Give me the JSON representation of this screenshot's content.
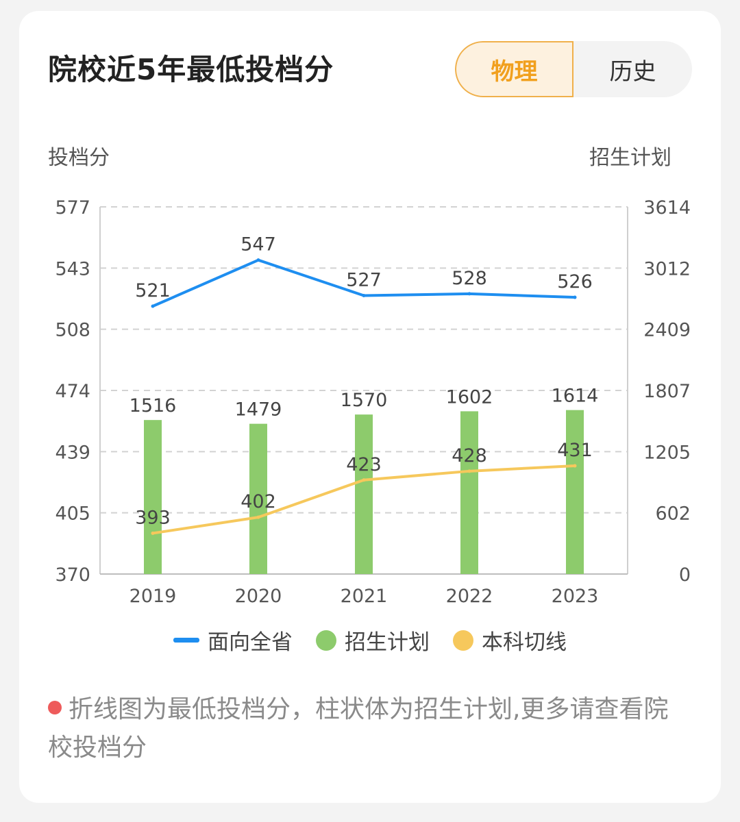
{
  "header": {
    "title": "院校近5年最低投档分",
    "tabs": [
      {
        "label": "物理",
        "active": true
      },
      {
        "label": "历史",
        "active": false
      }
    ]
  },
  "chart_data": {
    "type": "bar+line",
    "categories": [
      "2019",
      "2020",
      "2021",
      "2022",
      "2023"
    ],
    "left_axis": {
      "label": "投档分",
      "ticks": [
        "577",
        "543",
        "508",
        "474",
        "439",
        "405",
        "370"
      ],
      "range": [
        370,
        577
      ]
    },
    "right_axis": {
      "label": "招生计划",
      "ticks": [
        "3614",
        "3012",
        "2409",
        "1807",
        "1205",
        "602",
        "0"
      ],
      "range": [
        0,
        3614
      ]
    },
    "series": [
      {
        "name": "面向全省",
        "type": "line",
        "axis": "left",
        "color": "#1e8ef0",
        "values": [
          521,
          547,
          527,
          528,
          526
        ]
      },
      {
        "name": "招生计划",
        "type": "bar",
        "axis": "right",
        "color": "#8dcb6c",
        "values": [
          1516,
          1479,
          1570,
          1602,
          1614
        ]
      },
      {
        "name": "本科切线",
        "type": "line",
        "axis": "left",
        "color": "#f6c85c",
        "values": [
          393,
          402,
          423,
          428,
          431
        ]
      }
    ],
    "grid": true,
    "legend_position": "bottom"
  },
  "note": {
    "text": "折线图为最低投档分，柱状体为招生计划,更多请查看院校投档分"
  }
}
